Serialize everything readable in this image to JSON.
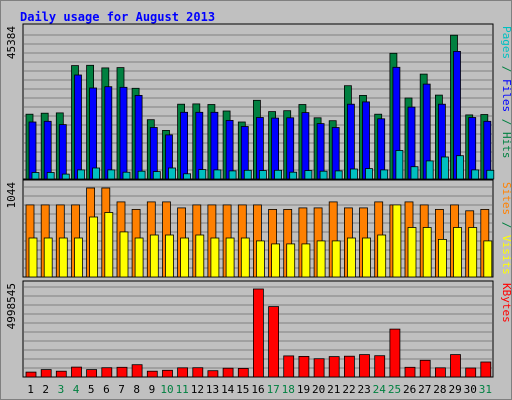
{
  "title": "Daily usage for August 2013",
  "chart_data": [
    {
      "type": "bar",
      "panel": "hits-files-pages",
      "max_label": "45384",
      "ylim": [
        0,
        45384
      ],
      "grid": true,
      "categories": [
        "1",
        "2",
        "3",
        "4",
        "5",
        "6",
        "7",
        "8",
        "9",
        "10",
        "11",
        "12",
        "13",
        "14",
        "15",
        "16",
        "17",
        "18",
        "19",
        "20",
        "21",
        "22",
        "23",
        "24",
        "25",
        "26",
        "27",
        "28",
        "29",
        "30",
        "31"
      ],
      "legend": [
        {
          "text": "Pages",
          "color": "#00c0c0"
        },
        {
          "text": " / ",
          "color": "#008040"
        },
        {
          "text": "Files",
          "color": "#0000ff"
        },
        {
          "text": " / ",
          "color": "#008040"
        },
        {
          "text": "Hits",
          "color": "#008040"
        }
      ],
      "series": [
        {
          "name": "Hits",
          "color": "#008040",
          "values": [
            20000,
            20300,
            20400,
            35000,
            35100,
            34300,
            34400,
            28000,
            18300,
            15000,
            23100,
            23200,
            23000,
            21000,
            17600,
            24300,
            20800,
            21100,
            23000,
            18900,
            18000,
            28800,
            25800,
            20000,
            38800,
            25000,
            32400,
            25900,
            44400,
            19800,
            19900
          ]
        },
        {
          "name": "Files",
          "color": "#0000ff",
          "values": [
            17600,
            17800,
            16800,
            32100,
            28100,
            28500,
            28300,
            25800,
            15900,
            13600,
            20600,
            20600,
            20600,
            18100,
            16200,
            19000,
            18800,
            18900,
            20500,
            17100,
            15900,
            23100,
            23800,
            18600,
            34500,
            22200,
            29300,
            23100,
            39400,
            19000,
            17800
          ]
        },
        {
          "name": "Pages",
          "color": "#00c0c0",
          "values": [
            2000,
            2000,
            1500,
            2800,
            3400,
            2800,
            2100,
            2400,
            2300,
            3400,
            1600,
            2900,
            2800,
            2500,
            2700,
            2600,
            2700,
            2100,
            2600,
            2400,
            2500,
            3100,
            3200,
            2800,
            8800,
            3800,
            5600,
            6800,
            7200,
            2800,
            2700
          ]
        }
      ]
    },
    {
      "type": "bar",
      "panel": "visits-sites",
      "max_label": "1044",
      "ylim": [
        0,
        1044
      ],
      "grid": true,
      "categories": [
        "1",
        "2",
        "3",
        "4",
        "5",
        "6",
        "7",
        "8",
        "9",
        "10",
        "11",
        "12",
        "13",
        "14",
        "15",
        "16",
        "17",
        "18",
        "19",
        "20",
        "21",
        "22",
        "23",
        "24",
        "25",
        "26",
        "27",
        "28",
        "29",
        "30",
        "31"
      ],
      "legend": [
        {
          "text": "Sites",
          "color": "#ff8000"
        },
        {
          "text": " / ",
          "color": "#008040"
        },
        {
          "text": "Visits",
          "color": "#ffff00"
        }
      ],
      "series": [
        {
          "name": "Sites",
          "color": "#ff8000",
          "values": [
            846,
            846,
            846,
            846,
            1044,
            1044,
            881,
            793,
            881,
            881,
            811,
            846,
            846,
            846,
            846,
            846,
            793,
            793,
            811,
            811,
            881,
            811,
            811,
            881,
            846,
            881,
            846,
            793,
            846,
            776,
            793
          ]
        },
        {
          "name": "Visits",
          "color": "#ffff00",
          "values": [
            458,
            458,
            458,
            458,
            704,
            757,
            529,
            458,
            493,
            493,
            458,
            493,
            458,
            458,
            458,
            423,
            388,
            388,
            388,
            423,
            423,
            458,
            458,
            493,
            846,
            581,
            581,
            441,
            581,
            581,
            423
          ]
        }
      ]
    },
    {
      "type": "bar",
      "panel": "kbytes",
      "max_label": "4998545",
      "ylim": [
        0,
        4998545
      ],
      "grid": true,
      "categories": [
        "1",
        "2",
        "3",
        "4",
        "5",
        "6",
        "7",
        "8",
        "9",
        "10",
        "11",
        "12",
        "13",
        "14",
        "15",
        "16",
        "17",
        "18",
        "19",
        "20",
        "21",
        "22",
        "23",
        "24",
        "25",
        "26",
        "27",
        "28",
        "29",
        "30",
        "31"
      ],
      "legend": [
        {
          "text": "KBytes",
          "color": "#ff0000"
        }
      ],
      "series": [
        {
          "name": "KBytes",
          "color": "#ff0000",
          "values": [
            280000,
            420000,
            330000,
            560000,
            420000,
            530000,
            550000,
            700000,
            330000,
            380000,
            520000,
            530000,
            360000,
            500000,
            490000,
            5000000,
            4000000,
            1200000,
            1170000,
            1040000,
            1160000,
            1180000,
            1270000,
            1210000,
            2720000,
            550000,
            950000,
            520000,
            1270000,
            510000,
            850000
          ]
        }
      ]
    }
  ],
  "x_axis": {
    "days": [
      "1",
      "2",
      "3",
      "4",
      "5",
      "6",
      "7",
      "8",
      "9",
      "10",
      "11",
      "12",
      "13",
      "14",
      "15",
      "16",
      "17",
      "18",
      "19",
      "20",
      "21",
      "22",
      "23",
      "24",
      "25",
      "26",
      "27",
      "28",
      "29",
      "30",
      "31"
    ],
    "weekend_days": [
      "3",
      "4",
      "10",
      "11",
      "17",
      "18",
      "24",
      "25",
      "31"
    ],
    "weekday_color": "#000000",
    "weekend_color": "#008040"
  }
}
